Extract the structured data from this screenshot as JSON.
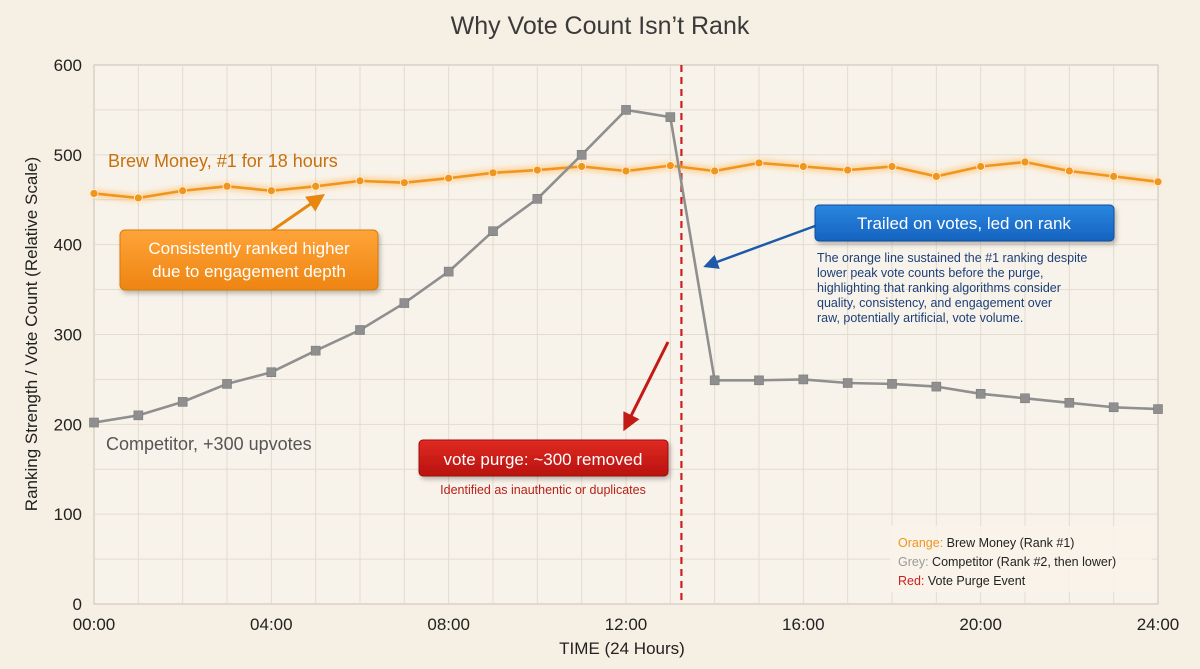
{
  "chart_data": {
    "type": "line",
    "title": "Why Vote Count Isn’t Rank",
    "xlabel": "TIME (24 Hours)",
    "ylabel": "Ranking Strength / Vote Count (Relative Scale)",
    "xlim": [
      0,
      24
    ],
    "ylim": [
      0,
      600
    ],
    "x_ticks": [
      0,
      4,
      8,
      12,
      16,
      20,
      24
    ],
    "x_tick_labels": [
      "00:00",
      "04:00",
      "08:00",
      "12:00",
      "16:00",
      "20:00",
      "24:00"
    ],
    "y_ticks": [
      0,
      100,
      200,
      300,
      400,
      500,
      600
    ],
    "y_tick_labels": [
      "0",
      "100",
      "200",
      "300",
      "400",
      "500",
      "600"
    ],
    "grid": true,
    "x": [
      0,
      1,
      2,
      3,
      4,
      5,
      6,
      7,
      8,
      9,
      10,
      11,
      12,
      13,
      14,
      15,
      16,
      17,
      18,
      19,
      20,
      21,
      22,
      23,
      24
    ],
    "series": [
      {
        "key": "brew",
        "color": "#f0961e",
        "marker": "circle",
        "values": [
          457,
          452,
          460,
          465,
          460,
          465,
          471,
          469,
          474,
          480,
          483,
          487,
          482,
          488,
          482,
          491,
          487,
          483,
          487,
          476,
          487,
          492,
          482,
          476,
          470
        ]
      },
      {
        "key": "competitor",
        "color": "#8f8f8f",
        "marker": "square",
        "x": [
          0,
          1,
          2,
          3,
          4,
          5,
          6,
          7,
          8,
          9,
          10,
          11,
          12,
          13,
          14,
          15,
          16,
          17,
          18,
          19,
          20,
          21,
          22,
          23,
          24
        ],
        "values": [
          202,
          210,
          225,
          245,
          258,
          282,
          305,
          335,
          370,
          415,
          451,
          500,
          550,
          542,
          249,
          249,
          250,
          246,
          245,
          242,
          234,
          229,
          224,
          219,
          217
        ]
      }
    ],
    "event_line": {
      "x": 13.25,
      "color": "#cc1f1f"
    },
    "annotations": {
      "brew_label": "Brew Money, #1 for 18 hours",
      "competitor_label": "Competitor, +300 upvotes",
      "orange_callout": [
        "Consistently ranked higher",
        "due to engagement depth"
      ],
      "blue_callout": "Trailed on votes, led on rank",
      "blue_note": [
        "The orange line sustained the #1 ranking despite",
        "lower peak vote counts before the purge,",
        "highlighting that ranking algorithms consider",
        "quality, consistency, and engagement over",
        "raw, potentially artificial, vote volume."
      ],
      "purge_callout": "vote purge: ~300 removed",
      "purge_note": "Identified as inauthentic or duplicates"
    },
    "legend": {
      "position": "bottom-right",
      "entries": [
        {
          "key": "Orange:",
          "text": " Brew Money (Rank #1)",
          "color": "#f0961e"
        },
        {
          "key": "Grey:",
          "text": " Competitor (Rank #2, then lower)",
          "color": "#9a9a9a"
        },
        {
          "key": "Red:",
          "text": " Vote Purge Event",
          "color": "#cc1f1f"
        }
      ]
    }
  }
}
